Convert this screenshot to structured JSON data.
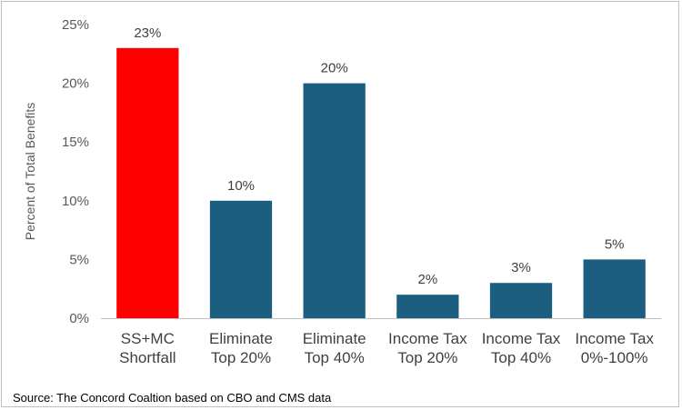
{
  "chart_data": {
    "type": "bar",
    "categories": [
      [
        "SS+MC",
        "Shortfall"
      ],
      [
        "Eliminate",
        "Top 20%"
      ],
      [
        "Eliminate",
        "Top 40%"
      ],
      [
        "Income Tax",
        "Top 20%"
      ],
      [
        "Income Tax",
        "Top 40%"
      ],
      [
        "Income Tax",
        "0%-100%"
      ]
    ],
    "values": [
      23,
      10,
      20,
      2,
      3,
      5
    ],
    "data_labels": [
      "23%",
      "10%",
      "20%",
      "2%",
      "3%",
      "5%"
    ],
    "bar_colors": [
      "#ff0000",
      "#1b5e80",
      "#1b5e80",
      "#1b5e80",
      "#1b5e80",
      "#1b5e80"
    ],
    "ylabel": "Percent of Total Benefits",
    "ylim": [
      0,
      25
    ],
    "yticks": [
      0,
      5,
      10,
      15,
      20,
      25
    ],
    "ytick_labels": [
      "0%",
      "5%",
      "10%",
      "15%",
      "20%",
      "25%"
    ],
    "grid": false,
    "legend": "none"
  },
  "source": "Source: The Concord Coaltion based on CBO and CMS data",
  "colors": {
    "axis": "#bfbfbf",
    "text": "#404040"
  }
}
